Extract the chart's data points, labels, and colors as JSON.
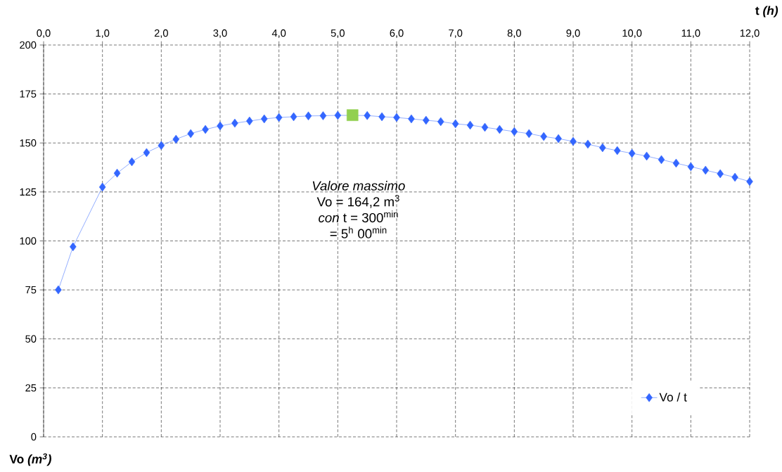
{
  "chart_data": {
    "type": "line",
    "xlabel": "t *(h)*",
    "ylabel": "Vo *(m$^{3}$)*",
    "annotations": [
      "Valore massimo",
      "Vo =  164,2 m$^{3}$",
      "*con* t = 300$^{min}$",
      "= 5$^{h}$ 00$^{min}$"
    ],
    "series": [
      {
        "name": "Vo / t",
        "color": "#3366ff",
        "marker": "diamond",
        "line_style": "solid",
        "x": [
          0.25,
          0.5,
          1.0,
          1.25,
          1.5,
          1.75,
          2.0,
          2.25,
          2.5,
          2.75,
          3.0,
          3.25,
          3.5,
          3.75,
          4.0,
          4.25,
          4.5,
          4.75,
          5.0,
          5.25,
          5.5,
          5.75,
          6.0,
          6.25,
          6.5,
          6.75,
          7.0,
          7.25,
          7.5,
          7.75,
          8.0,
          8.25,
          8.5,
          8.75,
          9.0,
          9.25,
          9.5,
          9.75,
          10.0,
          10.25,
          10.5,
          10.75,
          11.0,
          11.25,
          11.5,
          11.75,
          12.0
        ],
        "values": [
          75.0,
          97.0,
          127.5,
          134.6,
          140.4,
          145.1,
          148.7,
          151.9,
          154.8,
          156.9,
          158.7,
          160.1,
          161.2,
          162.3,
          163.0,
          163.4,
          163.8,
          163.9,
          164.1,
          null,
          164.0,
          163.4,
          163.0,
          162.3,
          161.6,
          160.9,
          159.8,
          159.1,
          158.0,
          156.9,
          155.8,
          154.8,
          153.3,
          152.2,
          150.8,
          149.4,
          147.6,
          146.1,
          144.7,
          143.3,
          141.5,
          139.7,
          137.9,
          136.1,
          134.3,
          132.5,
          130.3
        ]
      },
      {
        "type": "scatter",
        "color": "#92d050",
        "marker": "square",
        "x": [
          5.25
        ],
        "values": [
          164.2
        ]
      }
    ],
    "xlim": [
      0,
      12
    ],
    "ylim": [
      0,
      200
    ],
    "xticks": [
      {
        "value": 0,
        "label": "0,0"
      },
      {
        "value": 1,
        "label": "1,0"
      },
      {
        "value": 2,
        "label": "2,0"
      },
      {
        "value": 3,
        "label": "3,0"
      },
      {
        "value": 4,
        "label": "4,0"
      },
      {
        "value": 5,
        "label": "5,0"
      },
      {
        "value": 6,
        "label": "6,0"
      },
      {
        "value": 7,
        "label": "7,0"
      },
      {
        "value": 8,
        "label": "8,0"
      },
      {
        "value": 9,
        "label": "9,0"
      },
      {
        "value": 10,
        "label": "10,0"
      },
      {
        "value": 11,
        "label": "11,0"
      },
      {
        "value": 12,
        "label": "12,0"
      }
    ],
    "yticks": [
      0,
      25,
      50,
      75,
      100,
      125,
      150,
      175,
      200
    ],
    "grid": true,
    "legend": "bottom right"
  }
}
